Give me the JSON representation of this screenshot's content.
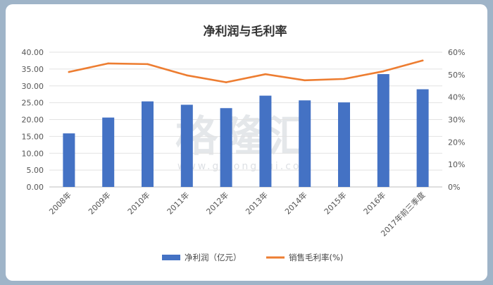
{
  "watermark": {
    "brand": "格隆汇",
    "url": "www.gelonghui.com"
  },
  "chart_data": {
    "type": "bar",
    "title": "净利润与毛利率",
    "categories": [
      "2008年",
      "2009年",
      "2010年",
      "2011年",
      "2012年",
      "2013年",
      "2014年",
      "2015年",
      "2016年",
      "2017年前三季度"
    ],
    "series": [
      {
        "name": "净利润（亿元）",
        "type": "bar",
        "axis": "left",
        "color": "#4472c4",
        "values": [
          15.9,
          20.6,
          25.4,
          24.4,
          23.4,
          27.1,
          25.7,
          25.1,
          33.5,
          29.0
        ]
      },
      {
        "name": "销售毛利率(%)",
        "type": "line",
        "axis": "right",
        "color": "#ed7d31",
        "values": [
          51.2,
          55.0,
          54.7,
          49.7,
          46.6,
          50.2,
          47.5,
          48.1,
          51.5,
          56.3
        ]
      }
    ],
    "ylim_left": [
      0,
      40
    ],
    "ylim_right": [
      0,
      60
    ],
    "yticks_left": [
      "0.00",
      "5.00",
      "10.00",
      "15.00",
      "20.00",
      "25.00",
      "30.00",
      "35.00",
      "40.00"
    ],
    "yticks_right": [
      "0%",
      "10%",
      "20%",
      "30%",
      "40%",
      "50%",
      "60%"
    ],
    "grid": true,
    "legend": "bottom"
  }
}
